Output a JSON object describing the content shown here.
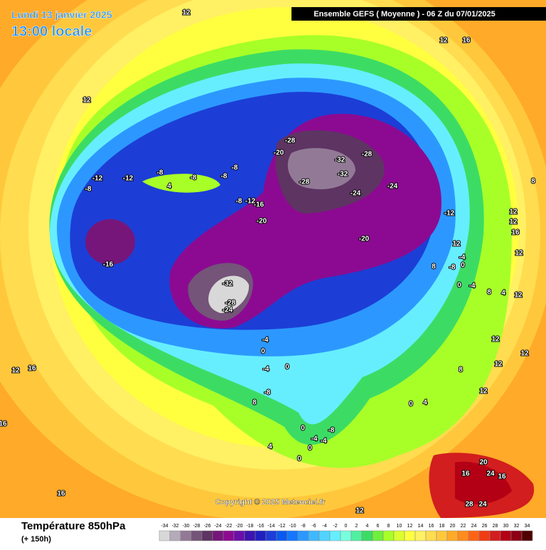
{
  "header": {
    "date": "Lundi 13 janvier 2025",
    "time": "13:00 locale",
    "model": "Ensemble GEFS  ( Moyenne )  -  06 Z du 07/01/2025",
    "copyright": "Copyright © 2025 Meteociel.fr"
  },
  "map": {
    "contour_labels": [
      12,
      12,
      12,
      16,
      -28,
      -20,
      -32,
      -32,
      -28,
      -28,
      -24,
      -24,
      -12,
      -20,
      -20,
      -16,
      -12,
      -8,
      -8,
      -8,
      -8,
      4,
      -8,
      -12,
      -12,
      -8,
      -16,
      -32,
      -28,
      -24,
      -4,
      0,
      -4,
      0,
      -8,
      8,
      4,
      16,
      12,
      16,
      16,
      12,
      0,
      -8,
      -4,
      -4,
      0,
      0,
      0,
      4,
      12,
      -4,
      8,
      -8,
      0,
      0,
      -4,
      8,
      4,
      12,
      12,
      8,
      12,
      12,
      12,
      8,
      12,
      12,
      16,
      12,
      20,
      16,
      24,
      16,
      28,
      24
    ]
  },
  "legend": {
    "title": "Température 850hPa",
    "subtitle": "(+ 150h)",
    "ticks": [
      -34,
      -32,
      -30,
      -28,
      -26,
      -24,
      -22,
      -20,
      -18,
      -16,
      -14,
      -12,
      -10,
      -8,
      -6,
      -4,
      -2,
      0,
      2,
      4,
      6,
      8,
      10,
      12,
      14,
      16,
      18,
      20,
      22,
      24,
      26,
      28,
      30,
      32,
      34
    ],
    "colors": [
      "#d8d8d8",
      "#b4aab8",
      "#927a96",
      "#745478",
      "#5e3462",
      "#76167a",
      "#8c0a92",
      "#6a10a8",
      "#3c14b0",
      "#2020c0",
      "#1c3ed6",
      "#0a5af0",
      "#1478ff",
      "#2c98ff",
      "#40b8ff",
      "#50d4ff",
      "#66eeff",
      "#78ffdc",
      "#50f0a0",
      "#3cdc64",
      "#6ef03c",
      "#a8ff28",
      "#dcff30",
      "#ffff40",
      "#fff064",
      "#ffdc50",
      "#ffc83c",
      "#ffaa28",
      "#ff8c1e",
      "#ff6414",
      "#f03c14",
      "#d21e1e",
      "#b40014",
      "#8c0014",
      "#500000"
    ]
  }
}
